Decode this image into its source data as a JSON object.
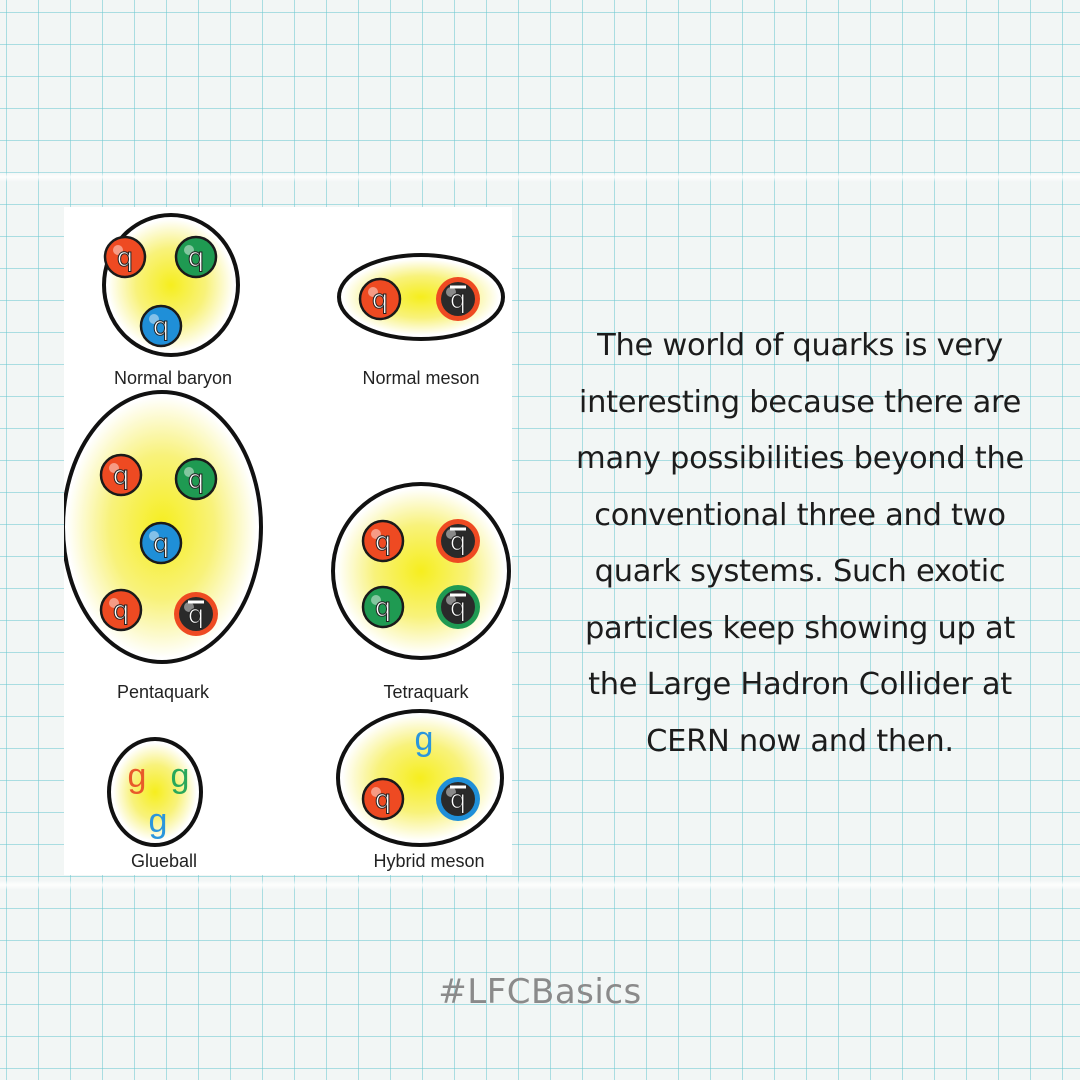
{
  "diagram": {
    "labels": {
      "normal_baryon": "Normal baryon",
      "normal_meson": "Normal meson",
      "pentaquark": "Pentaquark",
      "tetraquark": "Tetraquark",
      "glueball": "Glueball",
      "hybrid_meson": "Hybrid meson"
    },
    "quark_symbol": "q",
    "gluon_symbol": "g",
    "colors": {
      "red": "#ee4a22",
      "green": "#1f9a52",
      "blue": "#1f8fd8",
      "dark": "#2a2a2a",
      "glow": "#f4ec2a",
      "outline": "#111111",
      "gluon_red": "#e85a2a",
      "gluon_green": "#2aa85a",
      "gluon_blue": "#2a96dc"
    }
  },
  "body_lines": [
    "The world of quarks is very",
    "interesting because there are",
    "many possibilities beyond the",
    "conventional three and two",
    "quark systems. Such exotic",
    "particles keep showing up at",
    "the Large Hadron Collider at",
    "CERN now and then."
  ],
  "hashtag": "#LFCBasics"
}
